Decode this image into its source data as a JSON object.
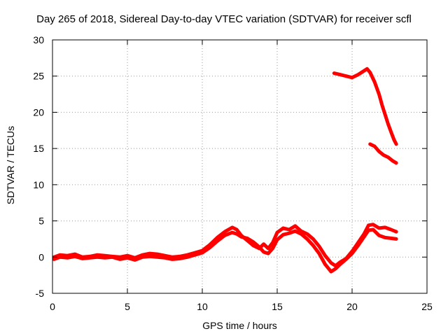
{
  "chart_data": {
    "type": "line",
    "title": "Day 265 of 2018, Sidereal Day-to-day VTEC variation (SDTVAR) for receiver scfl",
    "xlabel": "GPS time / hours",
    "ylabel": "SDTVAR / TECUs",
    "xlim": [
      0,
      25
    ],
    "ylim": [
      -5,
      30
    ],
    "xticks": [
      0,
      5,
      10,
      15,
      20,
      25
    ],
    "yticks": [
      -5,
      0,
      5,
      10,
      15,
      20,
      25,
      30
    ],
    "grid": true,
    "color": "#ff0000",
    "series": [
      {
        "name": "upper-band",
        "x": [
          18.8,
          19.2,
          19.6,
          20.0,
          20.4,
          20.7,
          21.0,
          21.2,
          21.5,
          21.8,
          22.0,
          22.2,
          22.4,
          22.6,
          22.8,
          22.95
        ],
        "y": [
          25.4,
          25.2,
          25.0,
          24.8,
          25.2,
          25.6,
          26.0,
          25.5,
          24.2,
          22.5,
          21.0,
          19.7,
          18.4,
          17.3,
          16.2,
          15.6
        ]
      },
      {
        "name": "secondary-band",
        "x": [
          21.2,
          21.5,
          21.8,
          22.1,
          22.4,
          22.7,
          22.95
        ],
        "y": [
          15.6,
          15.3,
          14.6,
          14.1,
          13.8,
          13.3,
          13.0
        ]
      },
      {
        "name": "near-zero-a",
        "x": [
          0.1,
          0.5,
          1.0,
          1.5,
          2.0,
          2.5,
          3.0,
          3.5,
          4.0,
          4.5,
          5.0,
          5.5,
          6.0,
          6.5,
          7.0,
          7.5,
          8.0,
          8.5,
          9.0,
          9.5,
          10.0,
          10.5,
          11.0,
          11.5,
          12.0,
          12.3,
          12.6,
          13.0,
          13.4,
          13.8,
          14.1,
          14.4,
          14.7,
          15.0,
          15.4,
          15.8,
          16.2,
          16.6,
          17.0,
          17.4,
          17.8,
          18.2,
          18.6,
          18.9,
          19.2,
          19.6,
          20.0,
          20.4,
          20.8,
          21.1,
          21.4,
          21.8,
          22.2,
          22.6,
          22.95
        ],
        "y": [
          0.0,
          0.3,
          0.2,
          0.4,
          0.0,
          0.1,
          0.3,
          0.2,
          0.1,
          0.0,
          0.2,
          -0.1,
          0.3,
          0.5,
          0.4,
          0.2,
          0.0,
          0.1,
          0.3,
          0.6,
          0.9,
          1.7,
          2.7,
          3.5,
          4.1,
          3.8,
          3.0,
          2.3,
          1.6,
          1.2,
          1.8,
          1.2,
          2.0,
          3.4,
          4.0,
          3.8,
          4.3,
          3.6,
          3.2,
          2.5,
          1.5,
          0.2,
          -0.8,
          -1.2,
          -0.7,
          -0.2,
          0.8,
          2.0,
          3.2,
          4.4,
          4.5,
          4.0,
          4.1,
          3.8,
          3.5
        ]
      },
      {
        "name": "near-zero-b",
        "x": [
          0.1,
          0.5,
          1.0,
          1.5,
          2.0,
          2.5,
          3.0,
          3.5,
          4.0,
          4.5,
          5.0,
          5.5,
          6.0,
          6.5,
          7.0,
          7.5,
          8.0,
          8.5,
          9.0,
          9.5,
          10.0,
          10.5,
          11.0,
          11.5,
          12.0,
          12.3,
          12.6,
          13.0,
          13.4,
          13.8,
          14.1,
          14.4,
          14.7,
          15.0,
          15.4,
          15.8,
          16.2,
          16.6,
          17.0,
          17.4,
          17.8,
          18.2,
          18.6,
          18.9,
          19.2,
          19.6,
          20.0,
          20.4,
          20.8,
          21.1,
          21.4,
          21.8,
          22.2,
          22.6,
          22.95
        ],
        "y": [
          -0.3,
          0.0,
          -0.1,
          0.1,
          -0.2,
          -0.1,
          0.0,
          -0.1,
          0.0,
          -0.3,
          -0.1,
          -0.4,
          0.0,
          0.1,
          0.0,
          -0.1,
          -0.3,
          -0.2,
          0.0,
          0.3,
          0.6,
          1.3,
          2.2,
          3.0,
          3.4,
          3.2,
          2.8,
          2.6,
          2.1,
          1.4,
          0.7,
          0.5,
          1.2,
          2.4,
          3.1,
          3.3,
          3.6,
          3.2,
          2.5,
          1.6,
          0.5,
          -1.0,
          -2.0,
          -1.6,
          -1.0,
          -0.3,
          0.5,
          1.6,
          2.8,
          3.7,
          3.8,
          3.0,
          2.7,
          2.6,
          2.5
        ]
      }
    ]
  }
}
